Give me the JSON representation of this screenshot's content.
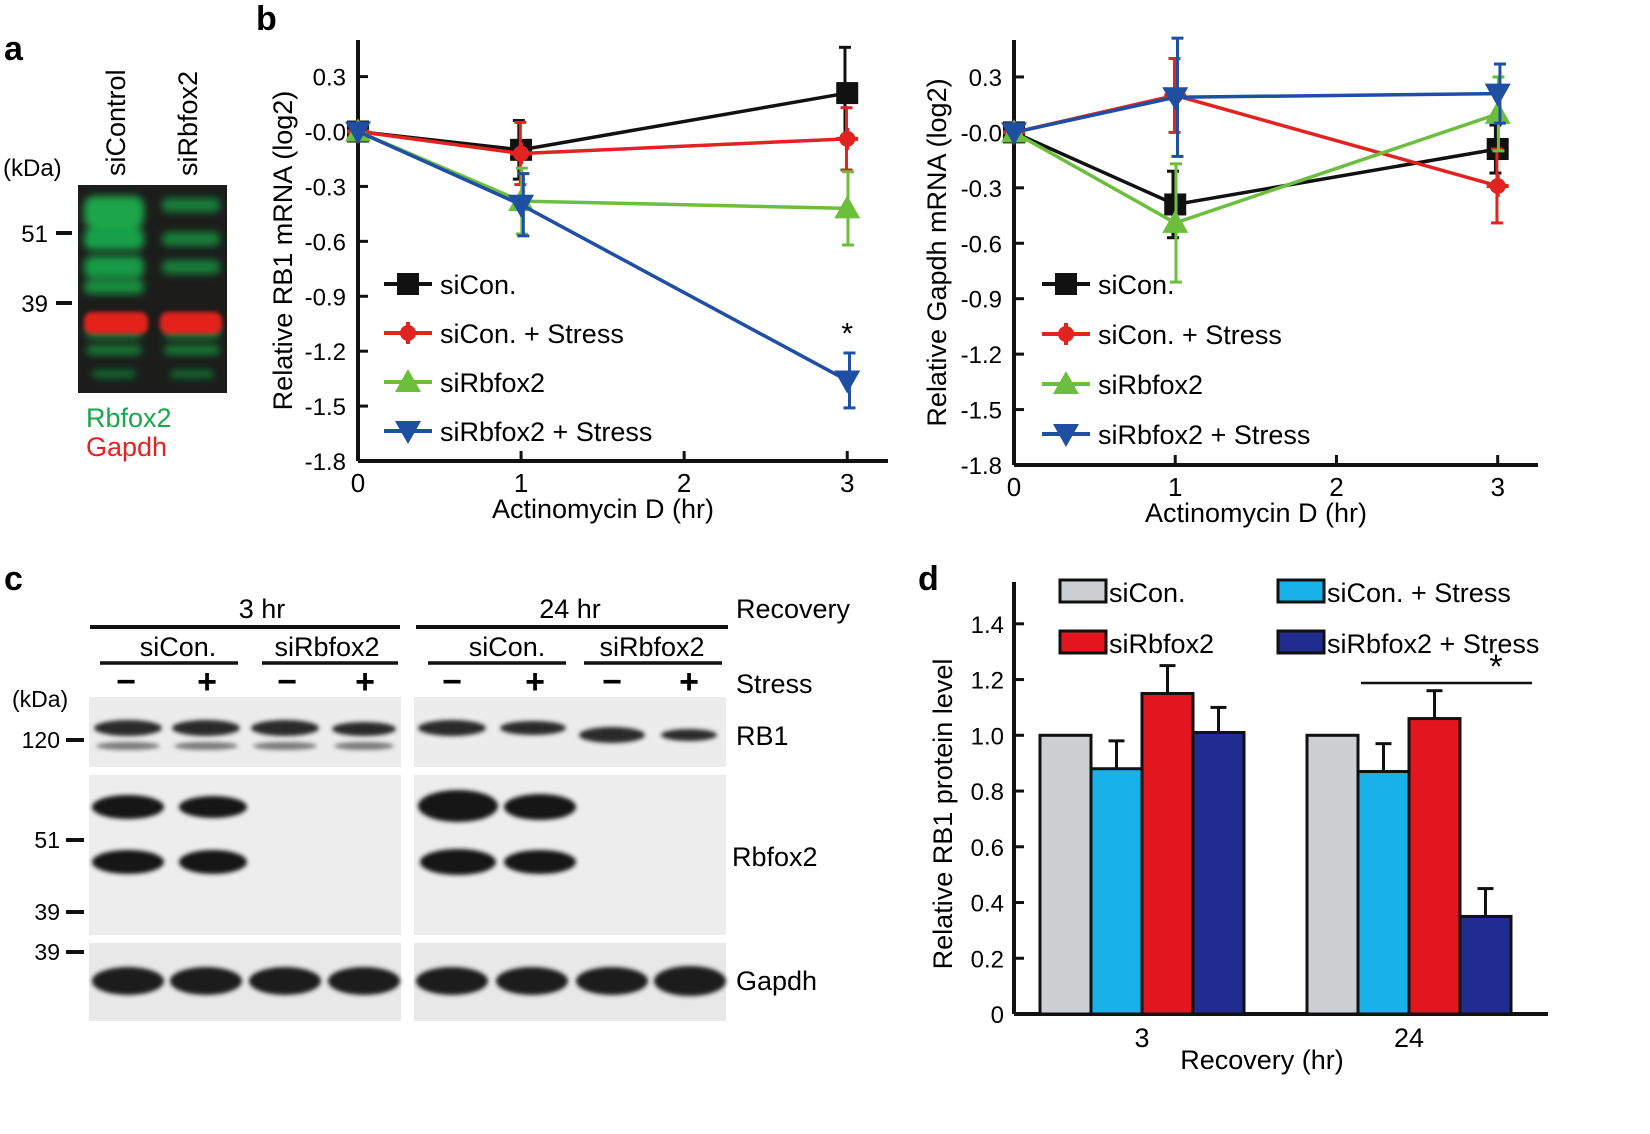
{
  "panels": {
    "a": {
      "label": "a",
      "kda_label": "(kDa)",
      "lanes": [
        "siControl",
        "siRbfox2"
      ],
      "markers": [
        "51",
        "39"
      ],
      "legend": [
        {
          "text": "Rbfox2",
          "color": "#1aa64a"
        },
        {
          "text": "Gapdh",
          "color": "#e3231f"
        }
      ]
    },
    "b": {
      "label": "b"
    },
    "c": {
      "label": "c",
      "kda_label": "(kDa)",
      "timepoints": [
        "3 hr",
        "24 hr"
      ],
      "recovery_label": "Recovery",
      "groups": [
        "siCon.",
        "siRbfox2",
        "siCon.",
        "siRbfox2"
      ],
      "stress_signs": [
        "−",
        "+",
        "−",
        "+",
        "−",
        "+",
        "−",
        "+"
      ],
      "stress_label": "Stress",
      "rows": [
        "RB1",
        "Rbfox2",
        "Gapdh"
      ],
      "markers": [
        "120",
        "51",
        "39",
        "39"
      ]
    },
    "d": {
      "label": "d"
    }
  },
  "chart_data": [
    {
      "type": "line",
      "xlabel": "Actinomycin D (hr)",
      "ylabel": "Relative RB1 mRNA (log2)",
      "xlim": [
        0,
        3.25
      ],
      "ylim": [
        -1.8,
        0.5
      ],
      "xticks": [
        "0",
        "1",
        "2",
        "3"
      ],
      "yticks": [
        "0.3",
        "-0.0",
        "-0.3",
        "-0.6",
        "-0.9",
        "-1.2",
        "-1.5",
        "-1.8"
      ],
      "x": [
        0,
        1,
        3
      ],
      "series": [
        {
          "name": "siCon.",
          "color": "#111111",
          "marker": "square",
          "values": [
            0,
            -0.1,
            0.21
          ],
          "errors": [
            0.02,
            0.16,
            0.25
          ]
        },
        {
          "name": "siCon. + Stress",
          "color": "#e3231f",
          "marker": "plus",
          "values": [
            0,
            -0.12,
            -0.04
          ],
          "errors": [
            0.02,
            0.17,
            0.17
          ]
        },
        {
          "name": "siRbfox2",
          "color": "#6cbf3c",
          "marker": "triangle-up",
          "values": [
            0,
            -0.38,
            -0.42
          ],
          "errors": [
            0.02,
            0.18,
            0.2
          ]
        },
        {
          "name": "siRbfox2 + Stress",
          "color": "#1f4fa3",
          "marker": "triangle-down",
          "values": [
            0,
            -0.4,
            -1.36
          ],
          "errors": [
            0.02,
            0.17,
            0.15
          ]
        }
      ],
      "annotations": [
        {
          "text": "*",
          "x": 3,
          "y": -1.18
        }
      ],
      "legend_position": "bottom-left"
    },
    {
      "type": "line",
      "xlabel": "Actinomycin D (hr)",
      "ylabel": "Relative Gapdh mRNA (log2)",
      "xlim": [
        0,
        3.25
      ],
      "ylim": [
        -1.8,
        0.5
      ],
      "xticks": [
        "0",
        "1",
        "2",
        "3"
      ],
      "yticks": [
        "0.3",
        "-0.0",
        "-0.3",
        "-0.6",
        "-0.9",
        "-1.2",
        "-1.5",
        "-1.8"
      ],
      "x": [
        0,
        1,
        3
      ],
      "series": [
        {
          "name": "siCon.",
          "color": "#111111",
          "marker": "square",
          "values": [
            0,
            -0.39,
            -0.09
          ],
          "errors": [
            0.02,
            0.18,
            0.13
          ]
        },
        {
          "name": "siCon. + Stress",
          "color": "#e3231f",
          "marker": "plus",
          "values": [
            0,
            0.2,
            -0.29
          ],
          "errors": [
            0.02,
            0.2,
            0.2
          ]
        },
        {
          "name": "siRbfox2",
          "color": "#6cbf3c",
          "marker": "triangle-up",
          "values": [
            0,
            -0.49,
            0.1
          ],
          "errors": [
            0.02,
            0.32,
            0.2
          ]
        },
        {
          "name": "siRbfox2 + Stress",
          "color": "#1f4fa3",
          "marker": "triangle-down",
          "values": [
            0,
            0.19,
            0.21
          ],
          "errors": [
            0.02,
            0.32,
            0.16
          ]
        }
      ],
      "legend_position": "bottom-left"
    },
    {
      "type": "bar",
      "xlabel": "Recovery (hr)",
      "ylabel": "Relative RB1 protein level",
      "categories": [
        "3",
        "24"
      ],
      "ylim": [
        0,
        1.55
      ],
      "yticks": [
        "0",
        "0.2",
        "0.4",
        "0.6",
        "0.8",
        "1.0",
        "1.2",
        "1.4"
      ],
      "series": [
        {
          "name": "siCon.",
          "color": "#cdd0d3",
          "values": [
            1.0,
            1.0
          ],
          "errors": [
            0,
            0
          ]
        },
        {
          "name": "siCon. + Stress",
          "color": "#19b1ea",
          "values": [
            0.88,
            0.87
          ],
          "errors": [
            0.1,
            0.1
          ]
        },
        {
          "name": "siRbfox2",
          "color": "#e3151e",
          "values": [
            1.15,
            1.06
          ],
          "errors": [
            0.1,
            0.1
          ]
        },
        {
          "name": "siRbfox2 + Stress",
          "color": "#202c8f",
          "values": [
            1.01,
            0.35
          ],
          "errors": [
            0.09,
            0.1
          ]
        }
      ],
      "annotations": [
        {
          "text": "*",
          "category": "24"
        }
      ],
      "legend_position": "top"
    }
  ]
}
